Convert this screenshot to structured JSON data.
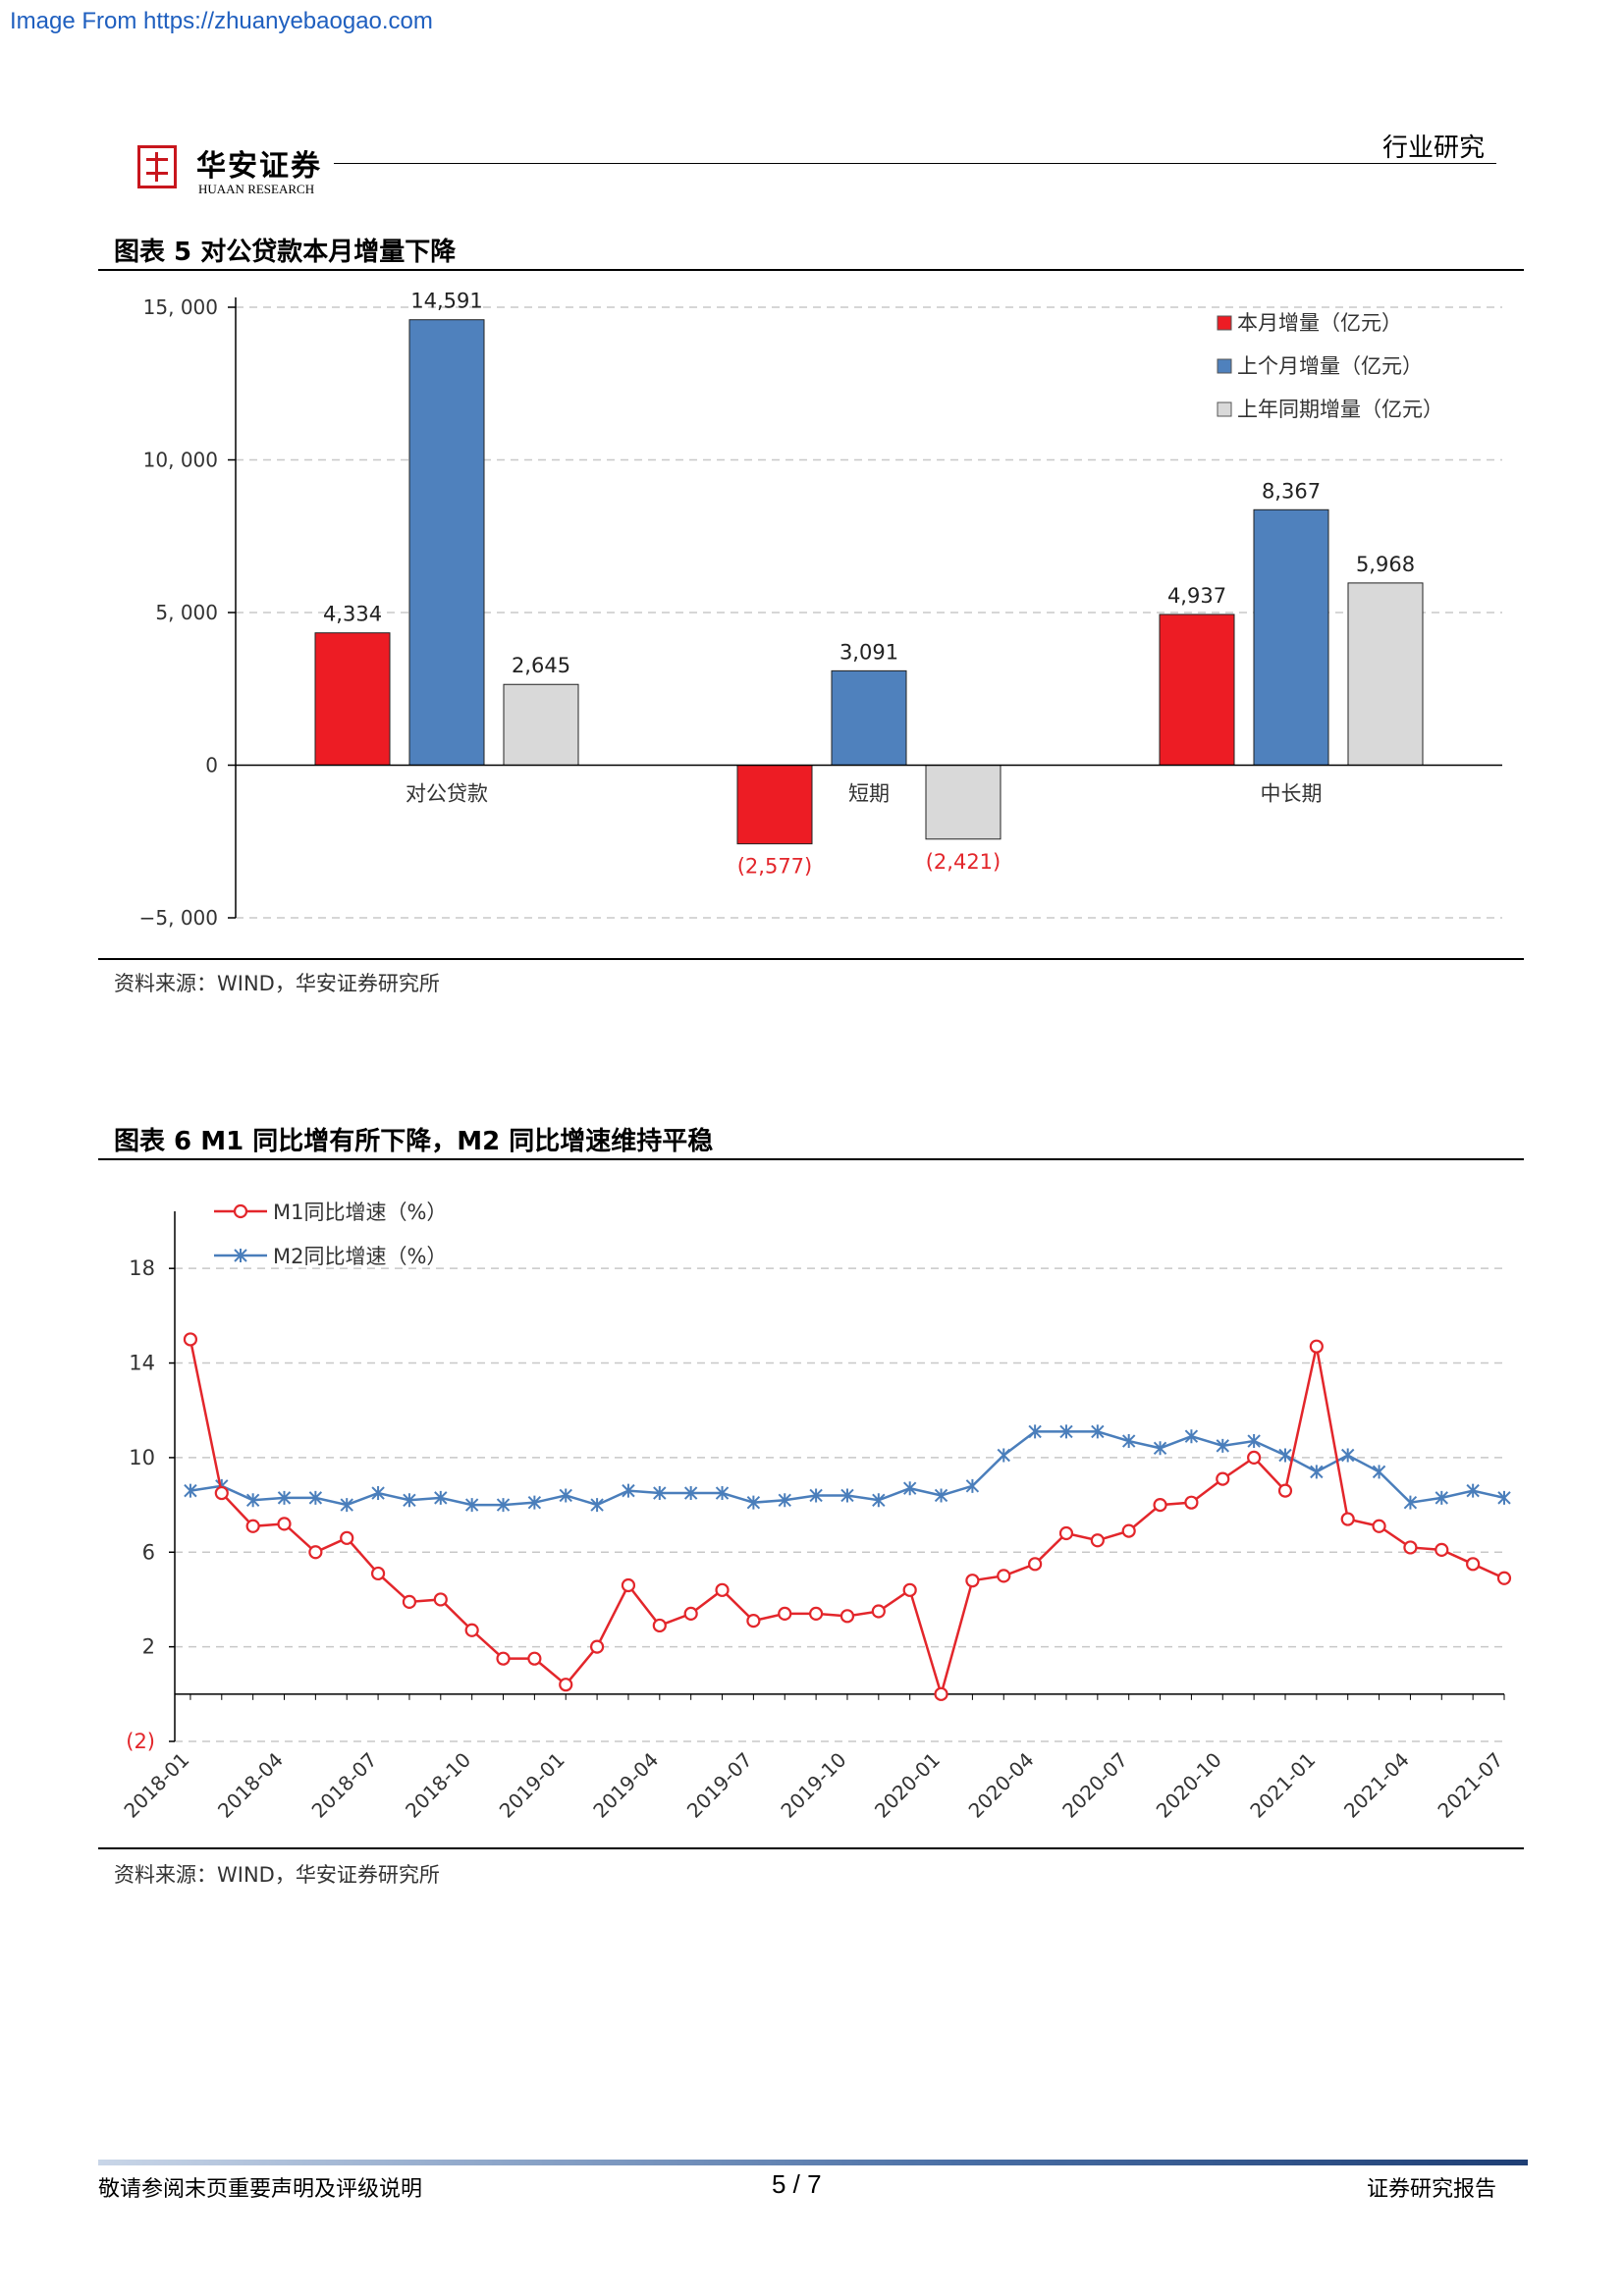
{
  "watermark": "Image From https://zhuanyebaogao.com",
  "header": {
    "logo_cn": "华安证券",
    "logo_en": "HUAAN RESEARCH",
    "section": "行业研究"
  },
  "figure5": {
    "title": "图表  5 对公贷款本月增量下降",
    "source": "资料来源：WIND，华安证券研究所"
  },
  "figure6": {
    "title": "图表 6    M1 同比增有所下降，M2 同比增速维持平稳",
    "source": "资料来源：WIND，华安证券研究所"
  },
  "footer": {
    "left": "敬请参阅末页重要声明及评级说明",
    "page": "5 / 7",
    "right": "证券研究报告"
  },
  "colors": {
    "current": "#ed1c24",
    "previous": "#4f81bd",
    "last_year": "#d9d9d9",
    "m1": "#e3262b",
    "m2": "#4a7ebb"
  },
  "chart_data": [
    {
      "type": "bar",
      "categories": [
        "对公贷款",
        "短期",
        "中长期"
      ],
      "series": [
        {
          "name": "本月增量（亿元）",
          "values": [
            4334,
            -2577,
            4937
          ],
          "labels": [
            "4,334",
            "(2,577)",
            "4,937"
          ]
        },
        {
          "name": "上个月增量（亿元）",
          "values": [
            14591,
            3091,
            8367
          ],
          "labels": [
            "14,591",
            "3,091",
            "8,367"
          ]
        },
        {
          "name": "上年同期增量（亿元）",
          "values": [
            2645,
            -2421,
            5968
          ],
          "labels": [
            "2,645",
            "(2,421)",
            "5,968"
          ]
        }
      ],
      "ylim": [
        -5000,
        15000
      ],
      "yticks": [
        15000,
        10000,
        5000,
        0,
        -5000
      ],
      "ytick_labels": [
        "15, 000",
        "10, 000",
        "5, 000",
        "0",
        "−5, 000"
      ],
      "grid": true,
      "legend_position": "top-right"
    },
    {
      "type": "line",
      "x": [
        "2018-01",
        "2018-02",
        "2018-03",
        "2018-04",
        "2018-05",
        "2018-06",
        "2018-07",
        "2018-08",
        "2018-09",
        "2018-10",
        "2018-11",
        "2018-12",
        "2019-01",
        "2019-02",
        "2019-03",
        "2019-04",
        "2019-05",
        "2019-06",
        "2019-07",
        "2019-08",
        "2019-09",
        "2019-10",
        "2019-11",
        "2019-12",
        "2020-01",
        "2020-02",
        "2020-03",
        "2020-04",
        "2020-05",
        "2020-06",
        "2020-07",
        "2020-08",
        "2020-09",
        "2020-10",
        "2020-11",
        "2020-12",
        "2021-01",
        "2021-02",
        "2021-03",
        "2021-04",
        "2021-05",
        "2021-06",
        "2021-07"
      ],
      "xtick_labels": [
        "2018-01",
        "2018-04",
        "2018-07",
        "2018-10",
        "2019-01",
        "2019-04",
        "2019-07",
        "2019-10",
        "2020-01",
        "2020-04",
        "2020-07",
        "2020-10",
        "2021-01",
        "2021-04",
        "2021-07"
      ],
      "series": [
        {
          "name": "M1同比增速（%）",
          "values": [
            15.0,
            8.5,
            7.1,
            7.2,
            6.0,
            6.6,
            5.1,
            3.9,
            4.0,
            2.7,
            1.5,
            1.5,
            0.4,
            2.0,
            4.6,
            2.9,
            3.4,
            4.4,
            3.1,
            3.4,
            3.4,
            3.3,
            3.5,
            4.4,
            0.0,
            4.8,
            5.0,
            5.5,
            6.8,
            6.5,
            6.9,
            8.0,
            8.1,
            9.1,
            10.0,
            8.6,
            14.7,
            7.4,
            7.1,
            6.2,
            6.1,
            5.5,
            4.9
          ]
        },
        {
          "name": "M2同比增速（%）",
          "values": [
            8.6,
            8.8,
            8.2,
            8.3,
            8.3,
            8.0,
            8.5,
            8.2,
            8.3,
            8.0,
            8.0,
            8.1,
            8.4,
            8.0,
            8.6,
            8.5,
            8.5,
            8.5,
            8.1,
            8.2,
            8.4,
            8.4,
            8.2,
            8.7,
            8.4,
            8.8,
            10.1,
            11.1,
            11.1,
            11.1,
            10.7,
            10.4,
            10.9,
            10.5,
            10.7,
            10.1,
            9.4,
            10.1,
            9.4,
            8.1,
            8.3,
            8.6,
            8.3
          ]
        }
      ],
      "ylim": [
        -2,
        20
      ],
      "yticks": [
        18,
        14,
        10,
        6,
        2,
        -2
      ],
      "ytick_labels": [
        "18",
        "14",
        "10",
        "6",
        "2",
        "(2)"
      ],
      "grid": true,
      "legend_position": "top-left"
    }
  ]
}
